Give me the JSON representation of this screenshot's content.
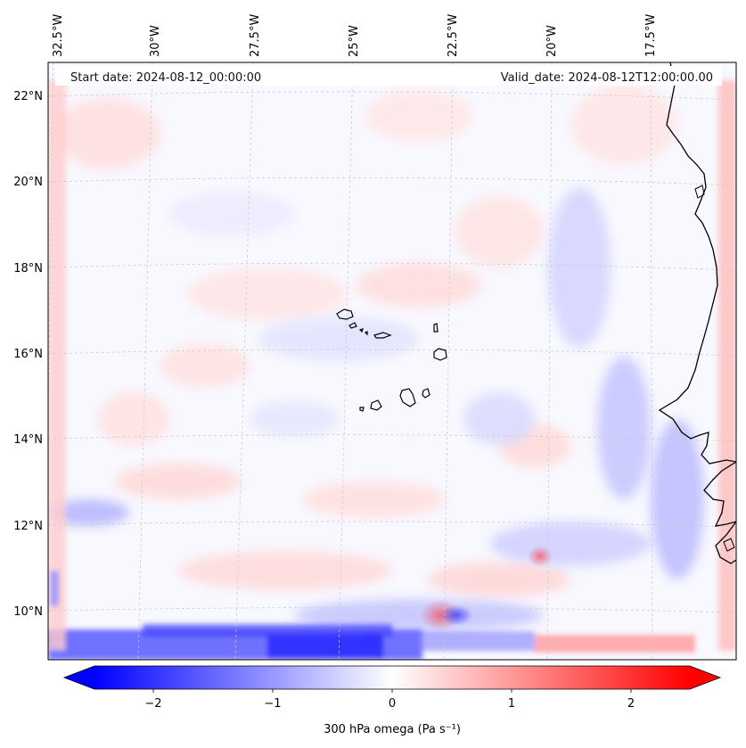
{
  "map": {
    "start_date_text": "Start date: 2024-08-12_00:00:00",
    "valid_date_text": "Valid_date: 2024-08-12T12:00:00.00",
    "lon_labels": [
      "32.5°W",
      "30°W",
      "27.5°W",
      "25°W",
      "22.5°W",
      "20°W",
      "17.5°W"
    ],
    "lat_labels": [
      "22°N",
      "20°N",
      "18°N",
      "16°N",
      "14°N",
      "12°N",
      "10°N"
    ],
    "field_colors": {
      "background": "#f8f8ff",
      "positive": "#ff0000",
      "negative": "#0000ff",
      "coast": "#000000",
      "grid": "#c8c8c8"
    }
  },
  "colorbar": {
    "label": "300 hPa omega (Pa s⁻¹)",
    "ticks": [
      "−2",
      "−1",
      "0",
      "1",
      "2"
    ],
    "range": [
      -2.7,
      2.7
    ],
    "colors": {
      "low": "#0000ff",
      "mid": "#ffffff",
      "high": "#ff0000"
    }
  }
}
